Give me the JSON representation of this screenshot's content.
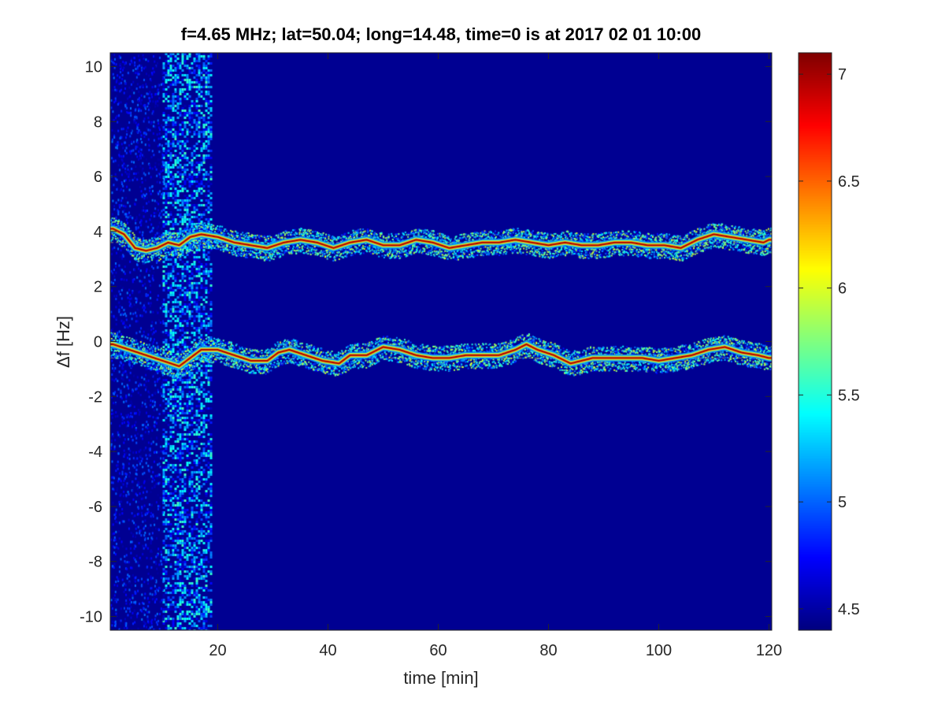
{
  "chart_data": {
    "type": "heatmap",
    "title": "f=4.65 MHz;  lat=50.04; long=14.48, time=0 is at 2017 02 01 10:00",
    "xlabel": "time [min]",
    "ylabel": "Δf [Hz]",
    "xlim": [
      0.5,
      120.5
    ],
    "ylim": [
      -10.5,
      10.5
    ],
    "x_ticks": [
      20,
      40,
      60,
      80,
      100,
      120
    ],
    "y_ticks": [
      10,
      8,
      6,
      4,
      2,
      0,
      -2,
      -4,
      -6,
      -8,
      -10
    ],
    "colorbar": {
      "colormap": "jet",
      "range": [
        4.4,
        7.1
      ],
      "ticks": [
        7,
        6.5,
        6,
        5.5,
        5,
        4.5
      ]
    },
    "background_value": 4.45,
    "noise_band": {
      "x_start": 10,
      "x_end": 19,
      "value_max": 5.6
    },
    "traces": [
      {
        "name": "",
        "reference_line": 3.6,
        "points": [
          [
            1,
            4.1
          ],
          [
            3,
            3.9
          ],
          [
            5,
            3.4
          ],
          [
            7,
            3.3
          ],
          [
            9,
            3.4
          ],
          [
            11,
            3.6
          ],
          [
            13,
            3.5
          ],
          [
            15,
            3.8
          ],
          [
            17,
            3.9
          ],
          [
            20,
            3.8
          ],
          [
            23,
            3.6
          ],
          [
            26,
            3.5
          ],
          [
            29,
            3.4
          ],
          [
            32,
            3.6
          ],
          [
            35,
            3.7
          ],
          [
            38,
            3.6
          ],
          [
            41,
            3.4
          ],
          [
            44,
            3.6
          ],
          [
            47,
            3.7
          ],
          [
            50,
            3.5
          ],
          [
            53,
            3.5
          ],
          [
            56,
            3.7
          ],
          [
            59,
            3.6
          ],
          [
            62,
            3.4
          ],
          [
            65,
            3.5
          ],
          [
            68,
            3.6
          ],
          [
            71,
            3.6
          ],
          [
            74,
            3.7
          ],
          [
            77,
            3.6
          ],
          [
            80,
            3.5
          ],
          [
            83,
            3.6
          ],
          [
            86,
            3.5
          ],
          [
            89,
            3.5
          ],
          [
            92,
            3.6
          ],
          [
            95,
            3.6
          ],
          [
            98,
            3.5
          ],
          [
            101,
            3.5
          ],
          [
            104,
            3.4
          ],
          [
            107,
            3.7
          ],
          [
            110,
            3.9
          ],
          [
            113,
            3.8
          ],
          [
            116,
            3.7
          ],
          [
            119,
            3.6
          ],
          [
            120,
            3.7
          ]
        ]
      },
      {
        "name": "",
        "reference_line": -0.6,
        "points": [
          [
            1,
            -0.1
          ],
          [
            4,
            -0.3
          ],
          [
            7,
            -0.5
          ],
          [
            10,
            -0.7
          ],
          [
            13,
            -0.9
          ],
          [
            15,
            -0.6
          ],
          [
            17,
            -0.3
          ],
          [
            20,
            -0.3
          ],
          [
            23,
            -0.5
          ],
          [
            26,
            -0.7
          ],
          [
            29,
            -0.7
          ],
          [
            31,
            -0.4
          ],
          [
            33,
            -0.3
          ],
          [
            36,
            -0.5
          ],
          [
            39,
            -0.7
          ],
          [
            42,
            -0.8
          ],
          [
            44,
            -0.5
          ],
          [
            47,
            -0.5
          ],
          [
            50,
            -0.2
          ],
          [
            53,
            -0.3
          ],
          [
            56,
            -0.5
          ],
          [
            59,
            -0.6
          ],
          [
            62,
            -0.6
          ],
          [
            65,
            -0.5
          ],
          [
            68,
            -0.5
          ],
          [
            71,
            -0.5
          ],
          [
            74,
            -0.3
          ],
          [
            76,
            -0.1
          ],
          [
            78,
            -0.3
          ],
          [
            81,
            -0.5
          ],
          [
            84,
            -0.8
          ],
          [
            86,
            -0.7
          ],
          [
            88,
            -0.6
          ],
          [
            91,
            -0.6
          ],
          [
            94,
            -0.6
          ],
          [
            97,
            -0.6
          ],
          [
            100,
            -0.7
          ],
          [
            103,
            -0.6
          ],
          [
            106,
            -0.5
          ],
          [
            109,
            -0.3
          ],
          [
            112,
            -0.2
          ],
          [
            115,
            -0.4
          ],
          [
            118,
            -0.5
          ],
          [
            120,
            -0.6
          ]
        ]
      }
    ]
  }
}
